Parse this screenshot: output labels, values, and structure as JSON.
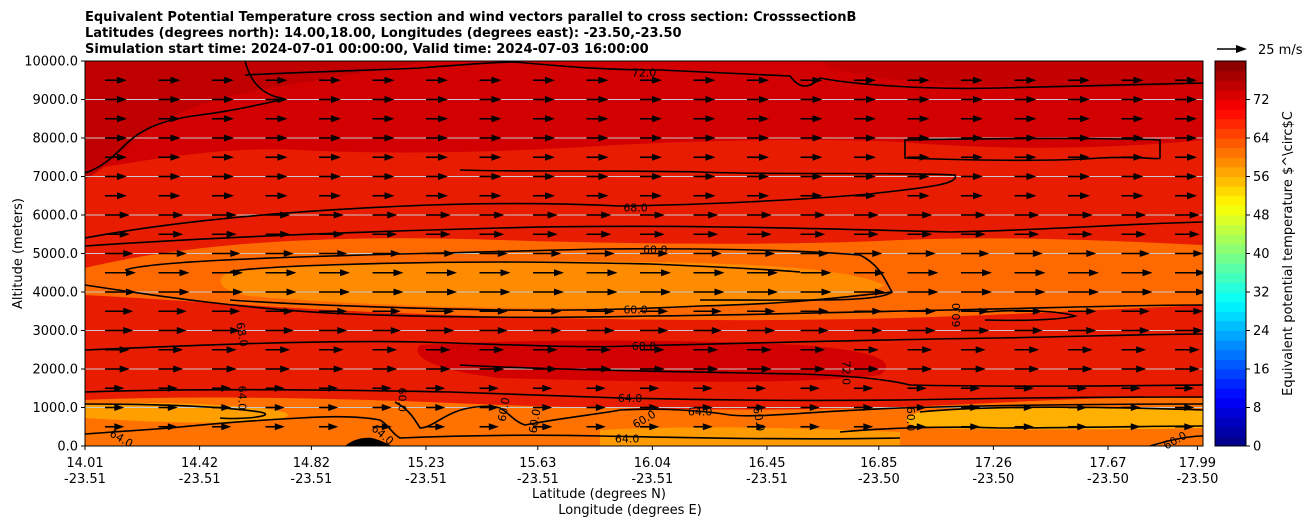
{
  "chart_data": {
    "type": "contourf",
    "title_lines": [
      "Equivalent Potential Temperature cross section and wind vectors parallel to cross section: CrosssectionB",
      "Latitudes (degrees north): 14.00,18.00, Longitudes (degrees east): -23.50,-23.50",
      "Simulation start time: 2024-07-01 00:00:00, Valid time: 2024-07-03 16:00:00"
    ],
    "ylabel": "Altitude (meters)",
    "xlabel_lat": "Latitude (degrees N)",
    "xlabel_lon": "Longitude (degrees E)",
    "ylim": [
      0,
      10000
    ],
    "y_ticks": [
      "0.0",
      "1000.0",
      "2000.0",
      "3000.0",
      "4000.0",
      "5000.0",
      "6000.0",
      "7000.0",
      "8000.0",
      "9000.0",
      "10000.0"
    ],
    "x_ticks": [
      {
        "lat": "14.01",
        "lon": "-23.51",
        "pos": 0.0
      },
      {
        "lat": "14.42",
        "lon": "-23.51",
        "pos": 0.1025
      },
      {
        "lat": "14.82",
        "lon": "-23.51",
        "pos": 0.2025
      },
      {
        "lat": "15.23",
        "lon": "-23.51",
        "pos": 0.305
      },
      {
        "lat": "15.63",
        "lon": "-23.51",
        "pos": 0.405
      },
      {
        "lat": "16.04",
        "lon": "-23.51",
        "pos": 0.5075
      },
      {
        "lat": "16.45",
        "lon": "-23.51",
        "pos": 0.61
      },
      {
        "lat": "16.85",
        "lon": "-23.50",
        "pos": 0.71
      },
      {
        "lat": "17.26",
        "lon": "-23.50",
        "pos": 0.8125
      },
      {
        "lat": "17.67",
        "lon": "-23.50",
        "pos": 0.915
      },
      {
        "lat": "17.99",
        "lon": "-23.50",
        "pos": 0.995
      }
    ],
    "colorbar": {
      "label": "Equivalent potential temperature $^\\circ$C",
      "min": 0,
      "max": 80,
      "step": 2,
      "ticks": [
        "0",
        "8",
        "16",
        "24",
        "32",
        "40",
        "48",
        "56",
        "64",
        "72"
      ]
    },
    "quiver_key": {
      "label": "25 m/s"
    },
    "contour_labels": [
      {
        "text": "72.0",
        "lat": 16.0,
        "z": 9700,
        "rot": 0
      },
      {
        "text": "68.0",
        "lat": 15.97,
        "z": 6200,
        "rot": 0
      },
      {
        "text": "60.0",
        "lat": 16.04,
        "z": 5100,
        "rot": 0
      },
      {
        "text": "60.0",
        "lat": 15.97,
        "z": 3550,
        "rot": 0
      },
      {
        "text": "68.0",
        "lat": 16.0,
        "z": 2600,
        "rot": 0
      },
      {
        "text": "64.0",
        "lat": 15.95,
        "z": 1250,
        "rot": 0
      },
      {
        "text": "64.0",
        "lat": 15.94,
        "z": 200,
        "rot": 0
      },
      {
        "text": "60.0",
        "lat": 16.0,
        "z": 700,
        "rot": -30
      },
      {
        "text": "64.0",
        "lat": 16.2,
        "z": 900,
        "rot": 0
      },
      {
        "text": "68.0",
        "lat": 14.57,
        "z": 2900,
        "rot": 80
      },
      {
        "text": "64.0",
        "lat": 14.57,
        "z": 1250,
        "rot": 90
      },
      {
        "text": "60.0",
        "lat": 15.14,
        "z": 1200,
        "rot": 90
      },
      {
        "text": "60.0",
        "lat": 15.5,
        "z": 950,
        "rot": -80
      },
      {
        "text": "60.0",
        "lat": 15.61,
        "z": 650,
        "rot": -80
      },
      {
        "text": "64.0",
        "lat": 14.14,
        "z": 200,
        "rot": 30
      },
      {
        "text": "64.0",
        "lat": 15.07,
        "z": 300,
        "rot": 40
      },
      {
        "text": "72.0",
        "lat": 16.72,
        "z": 1900,
        "rot": 90
      },
      {
        "text": "60.0",
        "lat": 16.41,
        "z": 700,
        "rot": 80
      },
      {
        "text": "60.0",
        "lat": 16.95,
        "z": 700,
        "rot": 90
      },
      {
        "text": "60.0",
        "lat": 17.11,
        "z": 3400,
        "rot": -90
      },
      {
        "text": "60.0",
        "lat": 17.89,
        "z": 150,
        "rot": -30
      }
    ]
  }
}
